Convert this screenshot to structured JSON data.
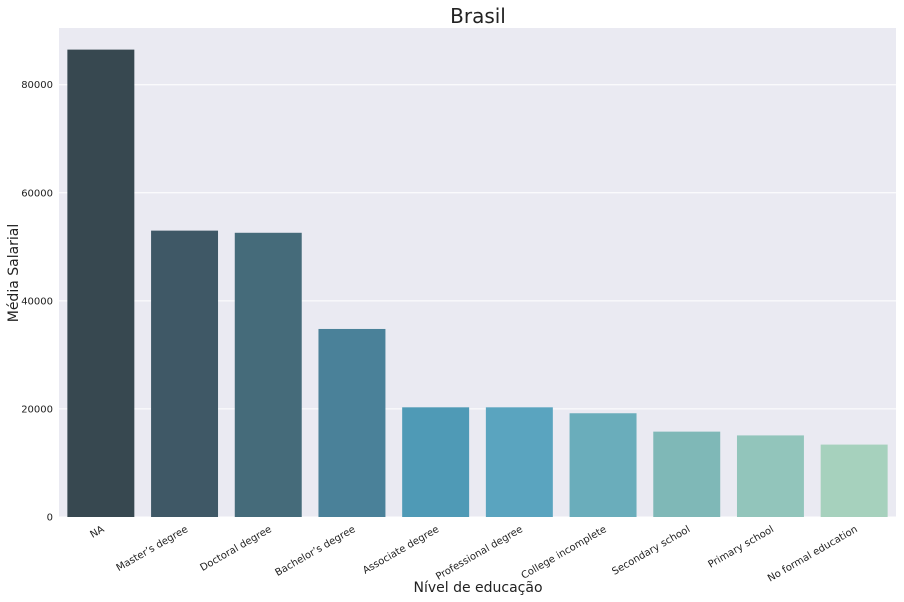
{
  "chart_data": {
    "type": "bar",
    "title": "Brasil",
    "xlabel": "Nível de educação",
    "ylabel": "Média Salarial",
    "categories": [
      "NA",
      "Master’s degree",
      "Doctoral degree",
      "Bachelor’s degree",
      "Associate degree",
      "Professional degree",
      "College incomplete",
      "Secondary school",
      "Primary school",
      "No formal education"
    ],
    "values": [
      86500,
      53000,
      52600,
      34800,
      20300,
      20300,
      19200,
      15800,
      15100,
      13400
    ],
    "ylim": [
      0,
      90500
    ],
    "yticks": [
      0,
      20000,
      40000,
      60000,
      80000
    ],
    "colors": [
      "#374850",
      "#3f5866",
      "#456b7a",
      "#4a8199",
      "#4f9ab6",
      "#5aa4bf",
      "#6aadbb",
      "#7fb8b7",
      "#92c5bb",
      "#a6d1bd"
    ],
    "background": "#eaeaf2",
    "grid": true
  }
}
